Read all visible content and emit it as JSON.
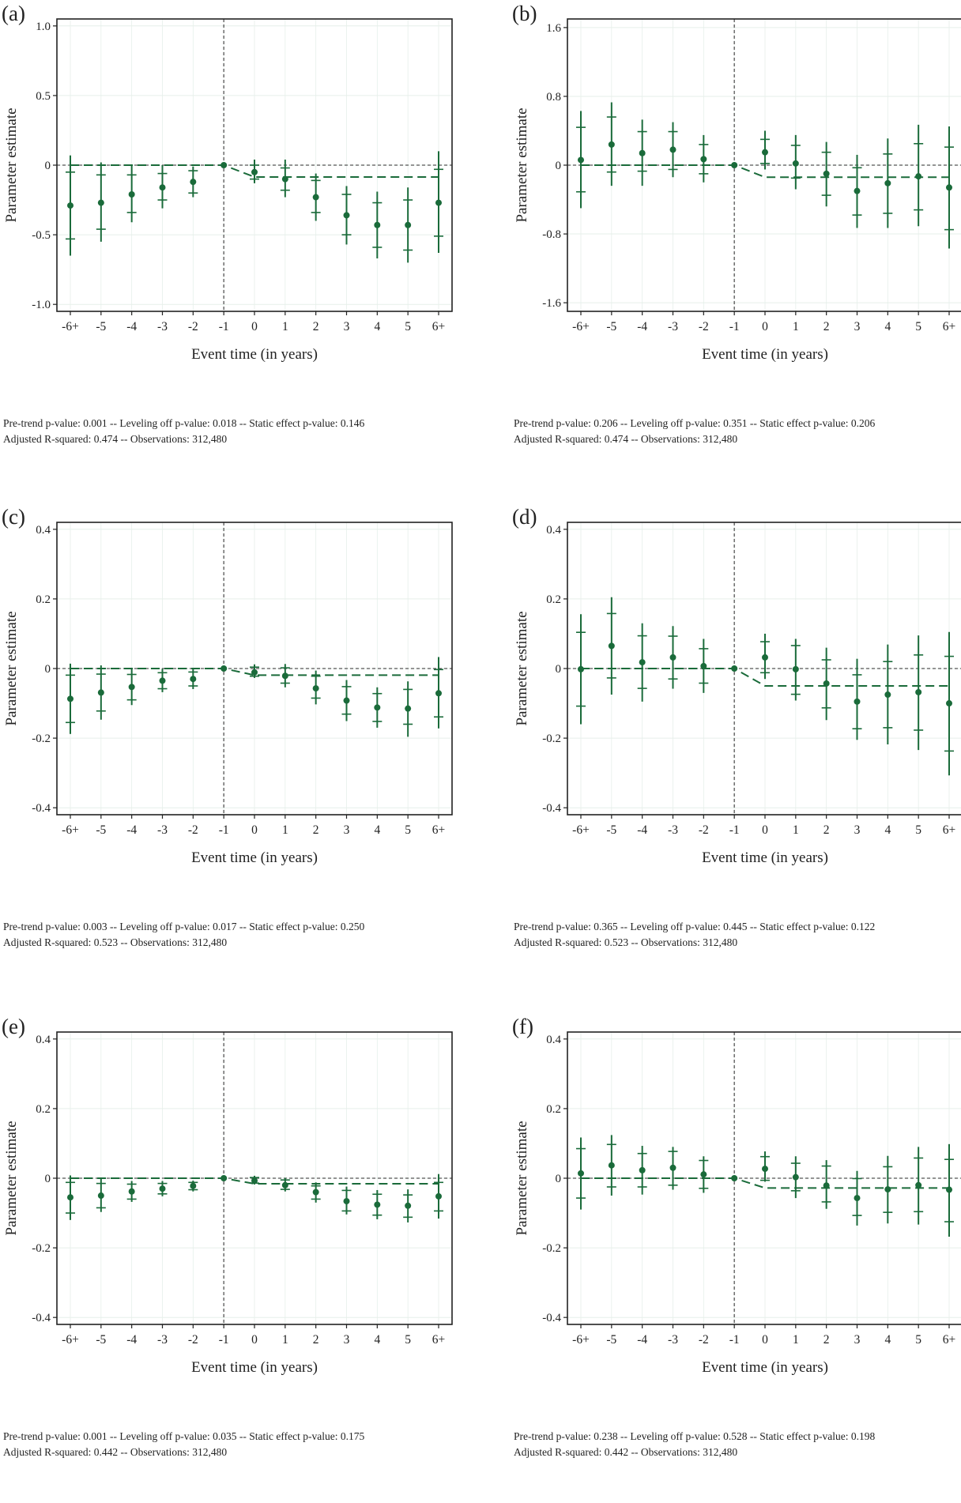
{
  "chart_data": [
    {
      "panel": "(a)",
      "type": "scatter",
      "xlabel": "Event time (in years)",
      "ylabel": "Parameter estimate",
      "categories": [
        "-6+",
        "-5",
        "-4",
        "-3",
        "-2",
        "-1",
        "0",
        "1",
        "2",
        "3",
        "4",
        "5",
        "6+"
      ],
      "ylim": [
        -1.05,
        1.05
      ],
      "yticks": [
        -1.0,
        -0.5,
        0,
        0.5,
        1.0
      ],
      "ytick_labels": [
        "-1.0",
        "-0.5",
        "0",
        "0.5",
        "1.0"
      ],
      "estimate": [
        -0.29,
        -0.27,
        -0.21,
        -0.16,
        -0.12,
        0,
        -0.05,
        -0.1,
        -0.23,
        -0.36,
        -0.43,
        -0.43,
        -0.27
      ],
      "ci90": [
        [
          -0.53,
          -0.05
        ],
        [
          -0.46,
          -0.07
        ],
        [
          -0.34,
          -0.07
        ],
        [
          -0.25,
          -0.06
        ],
        [
          -0.2,
          -0.04
        ],
        [
          0,
          0
        ],
        [
          -0.1,
          0.0
        ],
        [
          -0.18,
          -0.02
        ],
        [
          -0.34,
          -0.11
        ],
        [
          -0.5,
          -0.21
        ],
        [
          -0.59,
          -0.27
        ],
        [
          -0.61,
          -0.25
        ],
        [
          -0.51,
          -0.03
        ]
      ],
      "ci95": [
        [
          -0.65,
          0.07
        ],
        [
          -0.55,
          0.02
        ],
        [
          -0.41,
          0.0
        ],
        [
          -0.31,
          0.0
        ],
        [
          -0.23,
          -0.01
        ],
        [
          0,
          0
        ],
        [
          -0.13,
          0.04
        ],
        [
          -0.23,
          0.04
        ],
        [
          -0.4,
          -0.06
        ],
        [
          -0.57,
          -0.15
        ],
        [
          -0.67,
          -0.19
        ],
        [
          -0.7,
          -0.16
        ],
        [
          -0.63,
          0.1
        ]
      ],
      "static_effect": -0.085,
      "note_line1": "Pre-trend p-value: 0.001 -- Leveling off p-value: 0.018 -- Static effect p-value: 0.146",
      "note_line2": "Adjusted R-squared: 0.474 -- Observations: 312,480"
    },
    {
      "panel": "(b)",
      "type": "scatter",
      "xlabel": "Event time (in years)",
      "ylabel": "Parameter estimate",
      "categories": [
        "-6+",
        "-5",
        "-4",
        "-3",
        "-2",
        "-1",
        "0",
        "1",
        "2",
        "3",
        "4",
        "5",
        "6+"
      ],
      "ylim": [
        -1.7,
        1.7
      ],
      "yticks": [
        -1.6,
        -0.8,
        0,
        0.8,
        1.6
      ],
      "ytick_labels": [
        "-1.6",
        "-0.8",
        "0",
        "0.8",
        "1.6"
      ],
      "estimate": [
        0.06,
        0.24,
        0.14,
        0.18,
        0.07,
        0,
        0.15,
        0.02,
        -0.1,
        -0.3,
        -0.21,
        -0.13,
        -0.26
      ],
      "ci90": [
        [
          -0.31,
          0.44
        ],
        [
          -0.08,
          0.56
        ],
        [
          -0.07,
          0.39
        ],
        [
          -0.05,
          0.39
        ],
        [
          -0.1,
          0.24
        ],
        [
          0,
          0
        ],
        [
          0.02,
          0.3
        ],
        [
          -0.15,
          0.23
        ],
        [
          -0.35,
          0.15
        ],
        [
          -0.58,
          -0.03
        ],
        [
          -0.56,
          0.13
        ],
        [
          -0.52,
          0.25
        ],
        [
          -0.75,
          0.21
        ]
      ],
      "ci95": [
        [
          -0.5,
          0.63
        ],
        [
          -0.24,
          0.73
        ],
        [
          -0.24,
          0.53
        ],
        [
          -0.14,
          0.5
        ],
        [
          -0.2,
          0.35
        ],
        [
          0,
          0
        ],
        [
          -0.05,
          0.4
        ],
        [
          -0.28,
          0.35
        ],
        [
          -0.48,
          0.27
        ],
        [
          -0.73,
          0.12
        ],
        [
          -0.73,
          0.31
        ],
        [
          -0.71,
          0.47
        ],
        [
          -0.97,
          0.45
        ]
      ],
      "static_effect": -0.14,
      "note_line1": "Pre-trend p-value: 0.206 -- Leveling off p-value: 0.351 -- Static effect p-value: 0.206",
      "note_line2": "Adjusted R-squared: 0.474 -- Observations: 312,480"
    },
    {
      "panel": "(c)",
      "type": "scatter",
      "xlabel": "Event time (in years)",
      "ylabel": "Parameter estimate",
      "categories": [
        "-6+",
        "-5",
        "-4",
        "-3",
        "-2",
        "-1",
        "0",
        "1",
        "2",
        "3",
        "4",
        "5",
        "6+"
      ],
      "ylim": [
        -0.42,
        0.42
      ],
      "yticks": [
        -0.4,
        -0.2,
        0,
        0.2,
        0.4
      ],
      "ytick_labels": [
        "-0.4",
        "-0.2",
        "0",
        "0.2",
        "0.4"
      ],
      "estimate": [
        -0.087,
        -0.069,
        -0.053,
        -0.035,
        -0.03,
        0,
        -0.011,
        -0.021,
        -0.057,
        -0.092,
        -0.112,
        -0.115,
        -0.071
      ],
      "ci90": [
        [
          -0.155,
          -0.019
        ],
        [
          -0.122,
          -0.016
        ],
        [
          -0.09,
          -0.017
        ],
        [
          -0.058,
          -0.012
        ],
        [
          -0.05,
          -0.01
        ],
        [
          0,
          0
        ],
        [
          -0.022,
          0.004
        ],
        [
          -0.042,
          0.002
        ],
        [
          -0.085,
          -0.022
        ],
        [
          -0.131,
          -0.052
        ],
        [
          -0.152,
          -0.072
        ],
        [
          -0.16,
          -0.06
        ],
        [
          -0.139,
          -0.003
        ]
      ],
      "ci95": [
        [
          -0.188,
          0.014
        ],
        [
          -0.147,
          0.009
        ],
        [
          -0.105,
          -0.001
        ],
        [
          -0.068,
          -0.001
        ],
        [
          -0.059,
          0.0
        ],
        [
          0,
          0
        ],
        [
          -0.027,
          0.012
        ],
        [
          -0.054,
          0.013
        ],
        [
          -0.103,
          -0.006
        ],
        [
          -0.151,
          -0.033
        ],
        [
          -0.17,
          -0.054
        ],
        [
          -0.196,
          -0.037
        ],
        [
          -0.172,
          0.033
        ]
      ],
      "static_effect": -0.019,
      "note_line1": "Pre-trend p-value: 0.003 -- Leveling off p-value: 0.017 -- Static effect p-value: 0.250",
      "note_line2": "Adjusted R-squared: 0.523 -- Observations: 312,480"
    },
    {
      "panel": "(d)",
      "type": "scatter",
      "xlabel": "Event time (in years)",
      "ylabel": "Parameter estimate",
      "categories": [
        "-6+",
        "-5",
        "-4",
        "-3",
        "-2",
        "-1",
        "0",
        "1",
        "2",
        "3",
        "4",
        "5",
        "6+"
      ],
      "ylim": [
        -0.42,
        0.42
      ],
      "yticks": [
        -0.4,
        -0.2,
        0,
        0.2,
        0.4
      ],
      "ytick_labels": [
        "-0.4",
        "-0.2",
        "0",
        "0.2",
        "0.4"
      ],
      "estimate": [
        -0.002,
        0.065,
        0.018,
        0.032,
        0.007,
        0,
        0.032,
        -0.002,
        -0.043,
        -0.095,
        -0.075,
        -0.068,
        -0.1
      ],
      "ci90": [
        [
          -0.108,
          0.104
        ],
        [
          -0.027,
          0.158
        ],
        [
          -0.057,
          0.094
        ],
        [
          -0.03,
          0.093
        ],
        [
          -0.042,
          0.057
        ],
        [
          0,
          0
        ],
        [
          -0.012,
          0.077
        ],
        [
          -0.074,
          0.066
        ],
        [
          -0.113,
          0.025
        ],
        [
          -0.173,
          -0.018
        ],
        [
          -0.17,
          0.02
        ],
        [
          -0.177,
          0.039
        ],
        [
          -0.237,
          0.035
        ]
      ],
      "ci95": [
        [
          -0.16,
          0.156
        ],
        [
          -0.075,
          0.205
        ],
        [
          -0.095,
          0.13
        ],
        [
          -0.058,
          0.122
        ],
        [
          -0.07,
          0.085
        ],
        [
          0,
          0
        ],
        [
          -0.03,
          0.1
        ],
        [
          -0.092,
          0.085
        ],
        [
          -0.148,
          0.06
        ],
        [
          -0.205,
          0.028
        ],
        [
          -0.218,
          0.069
        ],
        [
          -0.234,
          0.095
        ],
        [
          -0.307,
          0.105
        ]
      ],
      "static_effect": -0.05,
      "note_line1": "Pre-trend p-value: 0.365 -- Leveling off p-value: 0.445 -- Static effect p-value: 0.122",
      "note_line2": "Adjusted R-squared: 0.523 -- Observations: 312,480"
    },
    {
      "panel": "(e)",
      "type": "scatter",
      "xlabel": "Event time (in years)",
      "ylabel": "Parameter estimate",
      "categories": [
        "-6+",
        "-5",
        "-4",
        "-3",
        "-2",
        "-1",
        "0",
        "1",
        "2",
        "3",
        "4",
        "5",
        "6+"
      ],
      "ylim": [
        -0.42,
        0.42
      ],
      "yticks": [
        -0.4,
        -0.2,
        0,
        0.2,
        0.4
      ],
      "ytick_labels": [
        "-0.4",
        "-0.2",
        "0",
        "0.2",
        "0.4"
      ],
      "estimate": [
        -0.055,
        -0.05,
        -0.038,
        -0.03,
        -0.022,
        0,
        -0.007,
        -0.02,
        -0.04,
        -0.066,
        -0.076,
        -0.079,
        -0.052
      ],
      "ci90": [
        [
          -0.1,
          -0.012
        ],
        [
          -0.085,
          -0.015
        ],
        [
          -0.06,
          -0.017
        ],
        [
          -0.045,
          -0.015
        ],
        [
          -0.033,
          -0.012
        ],
        [
          0,
          0
        ],
        [
          -0.014,
          0.002
        ],
        [
          -0.032,
          -0.005
        ],
        [
          -0.06,
          -0.022
        ],
        [
          -0.094,
          -0.035
        ],
        [
          -0.106,
          -0.046
        ],
        [
          -0.112,
          -0.048
        ],
        [
          -0.094,
          -0.012
        ]
      ],
      "ci95": [
        [
          -0.12,
          0.008
        ],
        [
          -0.097,
          -0.002
        ],
        [
          -0.068,
          -0.008
        ],
        [
          -0.052,
          -0.008
        ],
        [
          -0.038,
          -0.007
        ],
        [
          0,
          0
        ],
        [
          -0.018,
          0.007
        ],
        [
          -0.038,
          0.001
        ],
        [
          -0.07,
          -0.012
        ],
        [
          -0.104,
          -0.024
        ],
        [
          -0.118,
          -0.034
        ],
        [
          -0.127,
          -0.032
        ],
        [
          -0.116,
          0.012
        ]
      ],
      "static_effect": -0.016,
      "note_line1": "Pre-trend p-value: 0.001 -- Leveling off p-value: 0.035 -- Static effect p-value: 0.175",
      "note_line2": "Adjusted R-squared: 0.442 -- Observations: 312,480"
    },
    {
      "panel": "(f)",
      "type": "scatter",
      "xlabel": "Event time (in years)",
      "ylabel": "Parameter estimate",
      "categories": [
        "-6+",
        "-5",
        "-4",
        "-3",
        "-2",
        "-1",
        "0",
        "1",
        "2",
        "3",
        "4",
        "5",
        "6+"
      ],
      "ylim": [
        -0.42,
        0.42
      ],
      "yticks": [
        -0.4,
        -0.2,
        0,
        0.2,
        0.4
      ],
      "ytick_labels": [
        "-0.4",
        "-0.2",
        "0",
        "0.2",
        "0.4"
      ],
      "estimate": [
        0.014,
        0.037,
        0.023,
        0.03,
        0.011,
        0,
        0.027,
        0.003,
        -0.021,
        -0.057,
        -0.032,
        -0.02,
        -0.033
      ],
      "ci90": [
        [
          -0.057,
          0.085
        ],
        [
          -0.025,
          0.097
        ],
        [
          -0.025,
          0.071
        ],
        [
          -0.02,
          0.077
        ],
        [
          -0.029,
          0.051
        ],
        [
          0,
          0
        ],
        [
          -0.006,
          0.062
        ],
        [
          -0.036,
          0.043
        ],
        [
          -0.068,
          0.035
        ],
        [
          -0.107,
          -0.001
        ],
        [
          -0.098,
          0.033
        ],
        [
          -0.096,
          0.058
        ],
        [
          -0.125,
          0.054
        ]
      ],
      "ci95": [
        [
          -0.09,
          0.117
        ],
        [
          -0.05,
          0.124
        ],
        [
          -0.047,
          0.093
        ],
        [
          -0.033,
          0.09
        ],
        [
          -0.042,
          0.063
        ],
        [
          0,
          0
        ],
        [
          -0.01,
          0.077
        ],
        [
          -0.057,
          0.063
        ],
        [
          -0.088,
          0.052
        ],
        [
          -0.136,
          0.021
        ],
        [
          -0.13,
          0.064
        ],
        [
          -0.133,
          0.09
        ],
        [
          -0.168,
          0.098
        ]
      ],
      "static_effect": -0.028,
      "note_line1": "Pre-trend p-value: 0.238 -- Leveling off p-value: 0.528 -- Static effect p-value: 0.198",
      "note_line2": "Adjusted R-squared: 0.442 -- Observations: 312,480"
    }
  ],
  "style": {
    "point_color": "#1a6b3a",
    "reference_line_color": "#555555",
    "panel_border_color": "#222222",
    "grid_color": "#e6efea"
  }
}
